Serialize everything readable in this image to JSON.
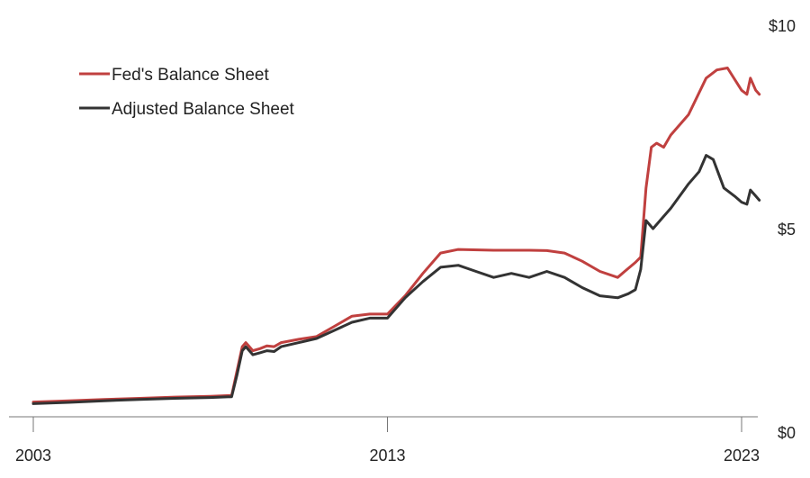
{
  "chart_data": {
    "type": "line",
    "title": "",
    "xlabel": "",
    "ylabel": "",
    "xlim": [
      2003,
      2023.5
    ],
    "ylim": [
      0,
      10
    ],
    "x_ticks": [
      {
        "value": 2003,
        "label": "2003"
      },
      {
        "value": 2013,
        "label": "2013"
      },
      {
        "value": 2023,
        "label": "2023"
      }
    ],
    "y_ticks": [
      {
        "value": 0,
        "label": "$0"
      },
      {
        "value": 5,
        "label": "$5"
      },
      {
        "value": 10,
        "label": "$10"
      }
    ],
    "grid": false,
    "legend_position": "top-left",
    "series": [
      {
        "name": "Fed's Balance Sheet",
        "color": "#c0403f",
        "points": [
          [
            2003.0,
            0.74
          ],
          [
            2004.0,
            0.77
          ],
          [
            2005.0,
            0.8
          ],
          [
            2006.0,
            0.83
          ],
          [
            2007.0,
            0.86
          ],
          [
            2008.0,
            0.88
          ],
          [
            2008.6,
            0.9
          ],
          [
            2008.75,
            1.5
          ],
          [
            2008.9,
            2.1
          ],
          [
            2009.0,
            2.2
          ],
          [
            2009.2,
            2.0
          ],
          [
            2009.4,
            2.05
          ],
          [
            2009.6,
            2.12
          ],
          [
            2009.8,
            2.1
          ],
          [
            2010.0,
            2.2
          ],
          [
            2010.5,
            2.28
          ],
          [
            2011.0,
            2.35
          ],
          [
            2011.5,
            2.6
          ],
          [
            2012.0,
            2.85
          ],
          [
            2012.5,
            2.9
          ],
          [
            2013.0,
            2.9
          ],
          [
            2013.5,
            3.35
          ],
          [
            2014.0,
            3.9
          ],
          [
            2014.5,
            4.4
          ],
          [
            2015.0,
            4.49
          ],
          [
            2016.0,
            4.47
          ],
          [
            2017.0,
            4.47
          ],
          [
            2017.5,
            4.46
          ],
          [
            2018.0,
            4.4
          ],
          [
            2018.5,
            4.2
          ],
          [
            2019.0,
            3.95
          ],
          [
            2019.5,
            3.8
          ],
          [
            2019.7,
            3.95
          ],
          [
            2020.0,
            4.17
          ],
          [
            2020.15,
            4.3
          ],
          [
            2020.3,
            6.0
          ],
          [
            2020.45,
            7.0
          ],
          [
            2020.6,
            7.1
          ],
          [
            2020.8,
            7.0
          ],
          [
            2021.0,
            7.3
          ],
          [
            2021.5,
            7.8
          ],
          [
            2022.0,
            8.7
          ],
          [
            2022.3,
            8.9
          ],
          [
            2022.6,
            8.95
          ],
          [
            2023.0,
            8.4
          ],
          [
            2023.15,
            8.3
          ],
          [
            2023.25,
            8.7
          ],
          [
            2023.4,
            8.4
          ],
          [
            2023.5,
            8.3
          ]
        ]
      },
      {
        "name": "Adjusted Balance Sheet",
        "color": "#333333",
        "points": [
          [
            2003.0,
            0.7
          ],
          [
            2004.0,
            0.73
          ],
          [
            2005.0,
            0.77
          ],
          [
            2006.0,
            0.8
          ],
          [
            2007.0,
            0.83
          ],
          [
            2008.0,
            0.85
          ],
          [
            2008.6,
            0.87
          ],
          [
            2008.75,
            1.4
          ],
          [
            2008.9,
            2.0
          ],
          [
            2009.0,
            2.1
          ],
          [
            2009.2,
            1.9
          ],
          [
            2009.4,
            1.95
          ],
          [
            2009.6,
            2.0
          ],
          [
            2009.8,
            1.98
          ],
          [
            2010.0,
            2.1
          ],
          [
            2010.5,
            2.2
          ],
          [
            2011.0,
            2.3
          ],
          [
            2011.5,
            2.5
          ],
          [
            2012.0,
            2.7
          ],
          [
            2012.5,
            2.8
          ],
          [
            2013.0,
            2.8
          ],
          [
            2013.5,
            3.3
          ],
          [
            2014.0,
            3.7
          ],
          [
            2014.5,
            4.05
          ],
          [
            2015.0,
            4.1
          ],
          [
            2015.5,
            3.95
          ],
          [
            2016.0,
            3.8
          ],
          [
            2016.5,
            3.9
          ],
          [
            2017.0,
            3.8
          ],
          [
            2017.5,
            3.95
          ],
          [
            2018.0,
            3.8
          ],
          [
            2018.5,
            3.55
          ],
          [
            2019.0,
            3.35
          ],
          [
            2019.5,
            3.3
          ],
          [
            2019.8,
            3.4
          ],
          [
            2020.0,
            3.5
          ],
          [
            2020.15,
            4.0
          ],
          [
            2020.3,
            5.2
          ],
          [
            2020.5,
            5.0
          ],
          [
            2020.8,
            5.3
          ],
          [
            2021.0,
            5.5
          ],
          [
            2021.5,
            6.1
          ],
          [
            2021.8,
            6.4
          ],
          [
            2022.0,
            6.8
          ],
          [
            2022.2,
            6.7
          ],
          [
            2022.5,
            6.0
          ],
          [
            2022.8,
            5.8
          ],
          [
            2023.0,
            5.65
          ],
          [
            2023.15,
            5.6
          ],
          [
            2023.25,
            5.95
          ],
          [
            2023.4,
            5.8
          ],
          [
            2023.5,
            5.7
          ]
        ]
      }
    ]
  }
}
